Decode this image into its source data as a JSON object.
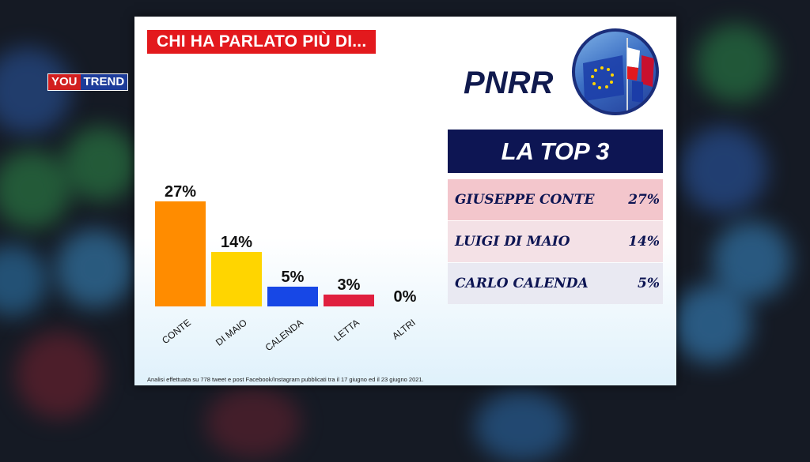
{
  "brand": {
    "part1": "YOU",
    "part2": "TREND"
  },
  "headline": "CHI HA PARLATO PIÙ DI...",
  "topic": "PNRR",
  "colors": {
    "headline_bg": "#e3191d",
    "navy": "#0d1553",
    "conte": "#ff8c00",
    "dimaio": "#ffd500",
    "calenda": "#1747e6",
    "letta": "#e0203f",
    "altri": "#999999"
  },
  "chart_data": {
    "type": "bar",
    "categories": [
      "CONTE",
      "DI MAIO",
      "CALENDA",
      "LETTA",
      "ALTRI"
    ],
    "values": [
      27,
      14,
      5,
      3,
      0
    ],
    "value_labels": [
      "27%",
      "14%",
      "5%",
      "3%",
      "0%"
    ],
    "colors": [
      "#ff8c00",
      "#ffd500",
      "#1747e6",
      "#e0203f",
      "#999999"
    ],
    "title": "CHI HA PARLATO PIÙ DI...",
    "xlabel": "",
    "ylabel": "",
    "ylim": [
      0,
      30
    ],
    "grid": false
  },
  "top3": {
    "title": "LA TOP 3",
    "rows": [
      {
        "name": "GIUSEPPE CONTE",
        "value": "27%",
        "bg": "#f3c6cc"
      },
      {
        "name": "LUIGI DI MAIO",
        "value": "14%",
        "bg": "#f4e1e6"
      },
      {
        "name": "CARLO CALENDA",
        "value": "5%",
        "bg": "#e9e9f2"
      }
    ]
  },
  "footnote": "Analisi effettuata su 778 tweet e post Facebook/Instagram pubblicati tra il 17 giugno ed il 23 giugno 2021."
}
